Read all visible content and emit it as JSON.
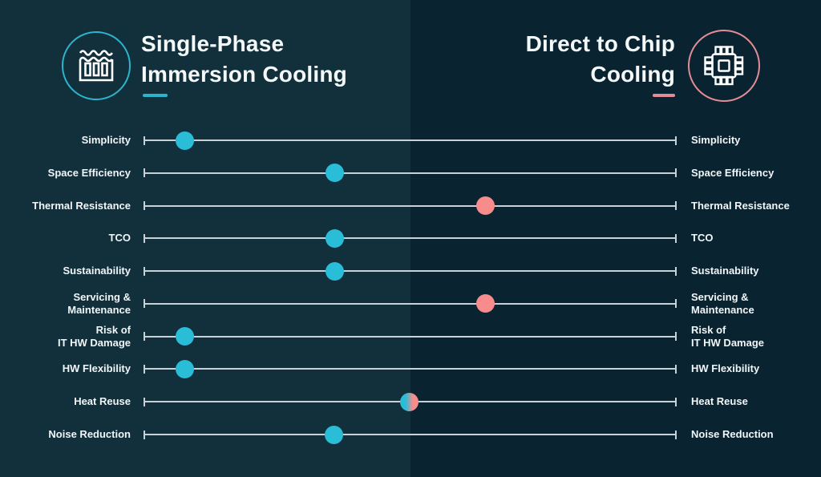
{
  "colors": {
    "bg_left": "#12303c",
    "bg_right": "#0a2330",
    "teal": "#2abdd8",
    "pink": "#f88c8c",
    "teal_stroke": "#2db4cd",
    "pink_stroke": "#e28d96",
    "track": "#c8d2d6",
    "text": "#f4f8f9"
  },
  "header": {
    "left": {
      "title_line1": "Single-Phase",
      "title_line2": "Immersion Cooling",
      "icon": "immersion-tank-icon"
    },
    "right": {
      "title_line1": "Direct to Chip",
      "title_line2": "Cooling",
      "icon": "chip-icon"
    }
  },
  "chart_data": {
    "type": "scatter",
    "subtype": "dot-slider-comparison",
    "title": "Single-Phase Immersion Cooling vs Direct to Chip Cooling",
    "left_series": "Single-Phase Immersion Cooling",
    "right_series": "Direct to Chip Cooling",
    "labels_both_sides": true,
    "axis": {
      "min_pct": 0,
      "max_pct": 100,
      "note": "dot position along the track; 0 = left end, 100 = right end"
    },
    "legend": {
      "teal": "favors Single-Phase Immersion Cooling",
      "pink": "favors Direct to Chip Cooling",
      "split": "neutral / both"
    },
    "rows": [
      {
        "label": [
          "Simplicity"
        ],
        "position_pct": 7.7,
        "dot": "teal"
      },
      {
        "label": [
          "Space Efficiency"
        ],
        "position_pct": 35.9,
        "dot": "teal"
      },
      {
        "label": [
          "Thermal Resistance"
        ],
        "position_pct": 64.1,
        "dot": "pink"
      },
      {
        "label": [
          "TCO"
        ],
        "position_pct": 35.9,
        "dot": "teal"
      },
      {
        "label": [
          "Sustainability"
        ],
        "position_pct": 35.9,
        "dot": "teal"
      },
      {
        "label": [
          "Servicing &",
          "Maintenance"
        ],
        "position_pct": 64.1,
        "dot": "pink"
      },
      {
        "label": [
          "Risk of",
          "IT HW Damage"
        ],
        "position_pct": 7.7,
        "dot": "teal"
      },
      {
        "label": [
          "HW Flexibility"
        ],
        "position_pct": 7.7,
        "dot": "teal"
      },
      {
        "label": [
          "Heat Reuse"
        ],
        "position_pct": 49.8,
        "dot": "split"
      },
      {
        "label": [
          "Noise Reduction"
        ],
        "position_pct": 35.7,
        "dot": "teal"
      }
    ]
  }
}
